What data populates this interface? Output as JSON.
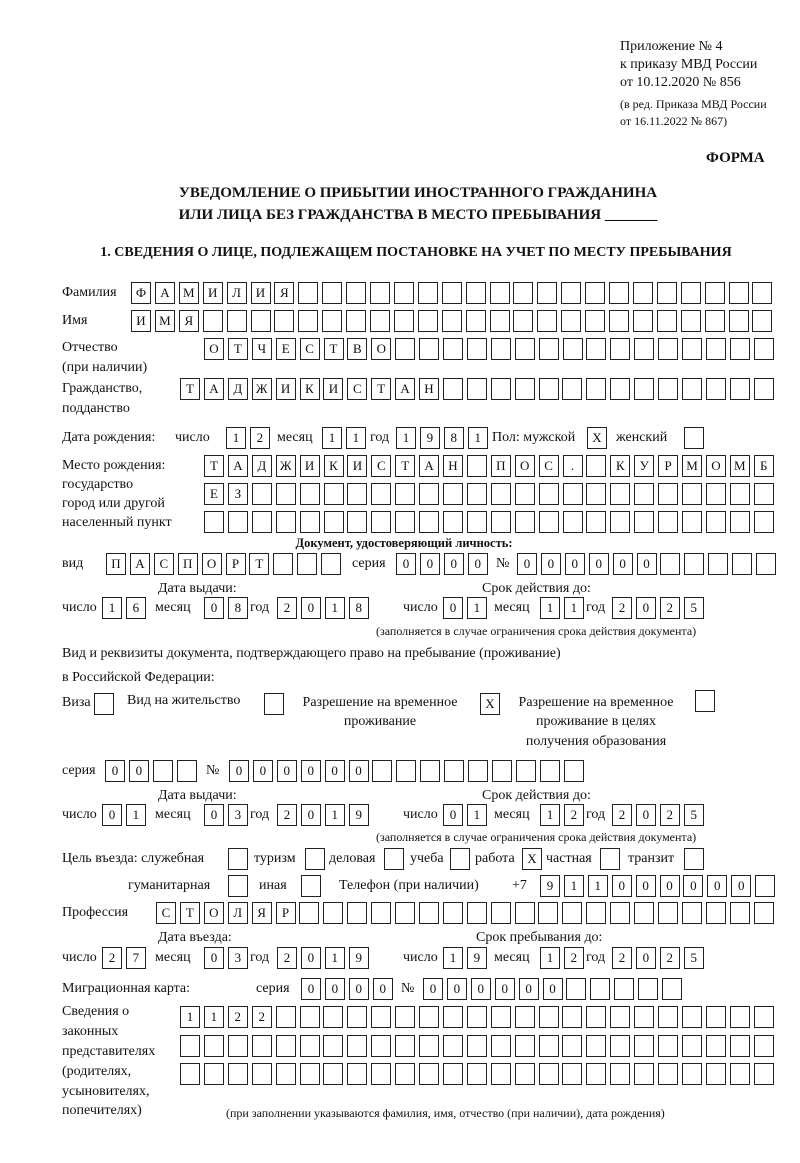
{
  "header": {
    "appendix": "Приложение № 4",
    "order": "к приказу МВД России",
    "order_date": "от 10.12.2020 № 856",
    "revision1": "(в ред. Приказа МВД России",
    "revision2": "от 16.11.2022 № 867)",
    "form_label": "ФОРМА",
    "title1": "УВЕДОМЛЕНИЕ О ПРИБЫТИИ ИНОСТРАННОГО ГРАЖДАНИНА",
    "title2": "ИЛИ ЛИЦА БЕЗ ГРАЖДАНСТВА В МЕСТО ПРЕБЫВАНИЯ _______"
  },
  "section1": {
    "heading": "1. СВЕДЕНИЯ О ЛИЦЕ, ПОДЛЕЖАЩЕМ ПОСТАНОВКЕ НА УЧЕТ ПО МЕСТУ ПРЕБЫВАНИЯ",
    "surname": {
      "label": "Фамилия",
      "value": "ФАМИЛИЯ"
    },
    "name": {
      "label": "Имя",
      "value": "ИМЯ"
    },
    "patronymic": {
      "label1": "Отчество",
      "label2": "(при наличии)",
      "value": "ОТЧЕСТВО"
    },
    "citizenship": {
      "label1": "Гражданство,",
      "label2": "подданство",
      "value": "ТАДЖИКИСТАН"
    },
    "birth_date": {
      "label": "Дата рождения:",
      "day_label": "число",
      "day": "12",
      "month_label": "месяц",
      "month": "11",
      "year_label": "год",
      "year": "1981"
    },
    "sex": {
      "label": "Пол: мужской",
      "male": "X",
      "female_label": "женский",
      "female": ""
    },
    "birth_place": {
      "label1": "Место рождения:",
      "label2": "государство",
      "label3": "город или другой",
      "label4": "населенный пункт",
      "line1": "ТАДЖИКИСТАН ПОС. КУРМОМБ",
      "line2": "ЕЗ",
      "line3": ""
    },
    "id_doc": {
      "heading": "Документ, удостоверяющий личность:",
      "type_label": "вид",
      "type": "ПАСПОРТ",
      "series_label": "серия",
      "series": "0000",
      "number_label": "№",
      "number": "000000",
      "issue_label": "Дата выдачи:",
      "valid_label": "Срок действия до:",
      "day_label": "число",
      "month_label": "месяц",
      "year_label": "год",
      "issue_day": "16",
      "issue_month": "08",
      "issue_year": "2018",
      "valid_day": "01",
      "valid_month": "11",
      "valid_year": "2025",
      "note": "(заполняется в случае ограничения срока действия документа)"
    },
    "stay_doc": {
      "intro1": "Вид и реквизиты документа, подтверждающего право на пребывание (проживание)",
      "intro2": "в Российской Федерации:",
      "visa_label": "Виза",
      "visa": "",
      "residence_label": "Вид на жительство",
      "residence": "",
      "trp_label1": "Разрешение на временное",
      "trp_label2": "проживание",
      "trp": "X",
      "trp_edu_label1": "Разрешение на временное",
      "trp_edu_label2": "проживание в целях",
      "trp_edu_label3": "получения образования",
      "trp_edu": "",
      "series_label": "серия",
      "series": "00",
      "number_label": "№",
      "number": "000000",
      "issue_label": "Дата выдачи:",
      "valid_label": "Срок действия до:",
      "day_label": "число",
      "month_label": "месяц",
      "year_label": "год",
      "issue_day": "01",
      "issue_month": "03",
      "issue_year": "2019",
      "valid_day": "01",
      "valid_month": "12",
      "valid_year": "2025",
      "note": "(заполняется в случае ограничения срока действия документа)"
    },
    "purpose": {
      "label": "Цель въезда: служебная",
      "official": "",
      "tourism_label": "туризм",
      "tourism": "",
      "business_label": "деловая",
      "business": "",
      "study_label": "учеба",
      "study": "",
      "work_label": "работа",
      "work": "X",
      "private_label": "частная",
      "private": "",
      "transit_label": "транзит",
      "transit": "",
      "humanitarian_label": "гуманитарная",
      "humanitarian": "",
      "other_label": "иная",
      "other": ""
    },
    "phone": {
      "label": "Телефон (при наличии)",
      "prefix": "+7",
      "value": "911000000"
    },
    "profession": {
      "label": "Профессия",
      "value": "СТОЛЯР"
    },
    "entry": {
      "entry_label": "Дата въезда:",
      "stay_label": "Срок пребывания до:",
      "day_label": "число",
      "month_label": "месяц",
      "year_label": "год",
      "entry_day": "27",
      "entry_month": "03",
      "entry_year": "2019",
      "stay_day": "19",
      "stay_month": "12",
      "stay_year": "2025"
    },
    "migration_card": {
      "label": "Миграционная карта:",
      "series_label": "серия",
      "series": "0000",
      "number_label": "№",
      "number": "000000"
    },
    "representatives": {
      "label1": "Сведения о",
      "label2": "законных",
      "label3": "представителях",
      "label4": "(родителях,",
      "label5": "усыновителях,",
      "label6": "попечителях)",
      "line1": "1122",
      "line2": "",
      "line3": "",
      "note": "(при заполнении указываются фамилия, имя, отчество (при наличии), дата рождения)"
    }
  }
}
